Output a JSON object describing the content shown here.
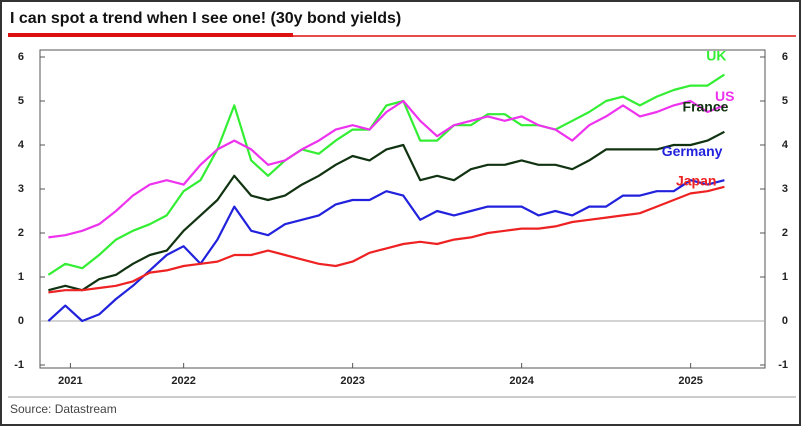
{
  "chart_data": {
    "type": "line",
    "title": "I can spot a trend when I see one! (30y bond yields)",
    "source": "Source: Datastream",
    "x": [
      2021.2,
      2021.3,
      2021.4,
      2021.5,
      2021.6,
      2021.7,
      2021.8,
      2021.9,
      2022.0,
      2022.1,
      2022.2,
      2022.3,
      2022.4,
      2022.5,
      2022.6,
      2022.7,
      2022.8,
      2022.9,
      2023.0,
      2023.1,
      2023.2,
      2023.3,
      2023.4,
      2023.5,
      2023.6,
      2023.7,
      2023.8,
      2023.9,
      2024.0,
      2024.1,
      2024.2,
      2024.3,
      2024.4,
      2024.5,
      2024.6,
      2024.7,
      2024.8,
      2024.9,
      2025.0,
      2025.1,
      2025.2
    ],
    "series": [
      {
        "name": "UK",
        "color": "#33ee33",
        "values": [
          1.05,
          1.3,
          1.2,
          1.5,
          1.85,
          2.05,
          2.2,
          2.4,
          2.95,
          3.2,
          3.9,
          4.9,
          3.65,
          3.3,
          3.65,
          3.9,
          3.8,
          4.1,
          4.35,
          4.35,
          4.9,
          5.0,
          4.1,
          4.1,
          4.45,
          4.45,
          4.7,
          4.7,
          4.45,
          4.45,
          4.35,
          4.55,
          4.75,
          5.0,
          5.1,
          4.9,
          5.1,
          5.25,
          5.35,
          5.35,
          5.6
        ]
      },
      {
        "name": "US",
        "color": "#ee33ee",
        "values": [
          1.9,
          1.95,
          2.05,
          2.2,
          2.5,
          2.85,
          3.1,
          3.2,
          3.1,
          3.55,
          3.9,
          4.1,
          3.9,
          3.55,
          3.65,
          3.9,
          4.1,
          4.35,
          4.45,
          4.35,
          4.75,
          5.0,
          4.55,
          4.2,
          4.45,
          4.55,
          4.65,
          4.55,
          4.65,
          4.45,
          4.35,
          4.1,
          4.45,
          4.65,
          4.9,
          4.65,
          4.75,
          4.9,
          5.0,
          4.75,
          4.9
        ]
      },
      {
        "name": "France",
        "color": "#113311",
        "values": [
          0.7,
          0.8,
          0.7,
          0.95,
          1.05,
          1.3,
          1.5,
          1.6,
          2.05,
          2.4,
          2.75,
          3.3,
          2.85,
          2.75,
          2.85,
          3.1,
          3.3,
          3.55,
          3.75,
          3.65,
          3.9,
          4.0,
          3.2,
          3.3,
          3.2,
          3.45,
          3.55,
          3.55,
          3.65,
          3.55,
          3.55,
          3.45,
          3.65,
          3.9,
          3.9,
          3.9,
          3.9,
          4.0,
          4.0,
          4.1,
          4.3
        ]
      },
      {
        "name": "Germany",
        "color": "#2222dd",
        "values": [
          0.0,
          0.35,
          0.0,
          0.15,
          0.5,
          0.8,
          1.15,
          1.5,
          1.7,
          1.3,
          1.85,
          2.6,
          2.05,
          1.95,
          2.2,
          2.3,
          2.4,
          2.65,
          2.75,
          2.75,
          2.95,
          2.85,
          2.3,
          2.5,
          2.4,
          2.5,
          2.6,
          2.6,
          2.6,
          2.4,
          2.5,
          2.4,
          2.6,
          2.6,
          2.85,
          2.85,
          2.95,
          2.95,
          3.2,
          3.1,
          3.2
        ]
      },
      {
        "name": "Japan",
        "color": "#ee2222",
        "values": [
          0.65,
          0.7,
          0.7,
          0.75,
          0.8,
          0.9,
          1.1,
          1.15,
          1.25,
          1.3,
          1.35,
          1.5,
          1.5,
          1.6,
          1.5,
          1.4,
          1.3,
          1.25,
          1.35,
          1.55,
          1.65,
          1.75,
          1.8,
          1.75,
          1.85,
          1.9,
          2.0,
          2.05,
          2.1,
          2.1,
          2.15,
          2.25,
          2.3,
          2.35,
          2.4,
          2.45,
          2.6,
          2.75,
          2.9,
          2.95,
          3.05
        ]
      }
    ],
    "xlim": [
      2021.15,
      2025.44
    ],
    "xticks": [
      {
        "value": 2021.33,
        "label": "2021"
      },
      2022,
      2023,
      2024,
      2025
    ],
    "ylim": [
      -1,
      6
    ],
    "yticks": [
      -1,
      0,
      1,
      2,
      3,
      4,
      5,
      6
    ],
    "y2lim": [
      -1,
      6
    ],
    "y2ticks": [
      -1,
      0,
      1,
      2,
      3,
      4,
      5,
      6
    ],
    "grid": false
  }
}
